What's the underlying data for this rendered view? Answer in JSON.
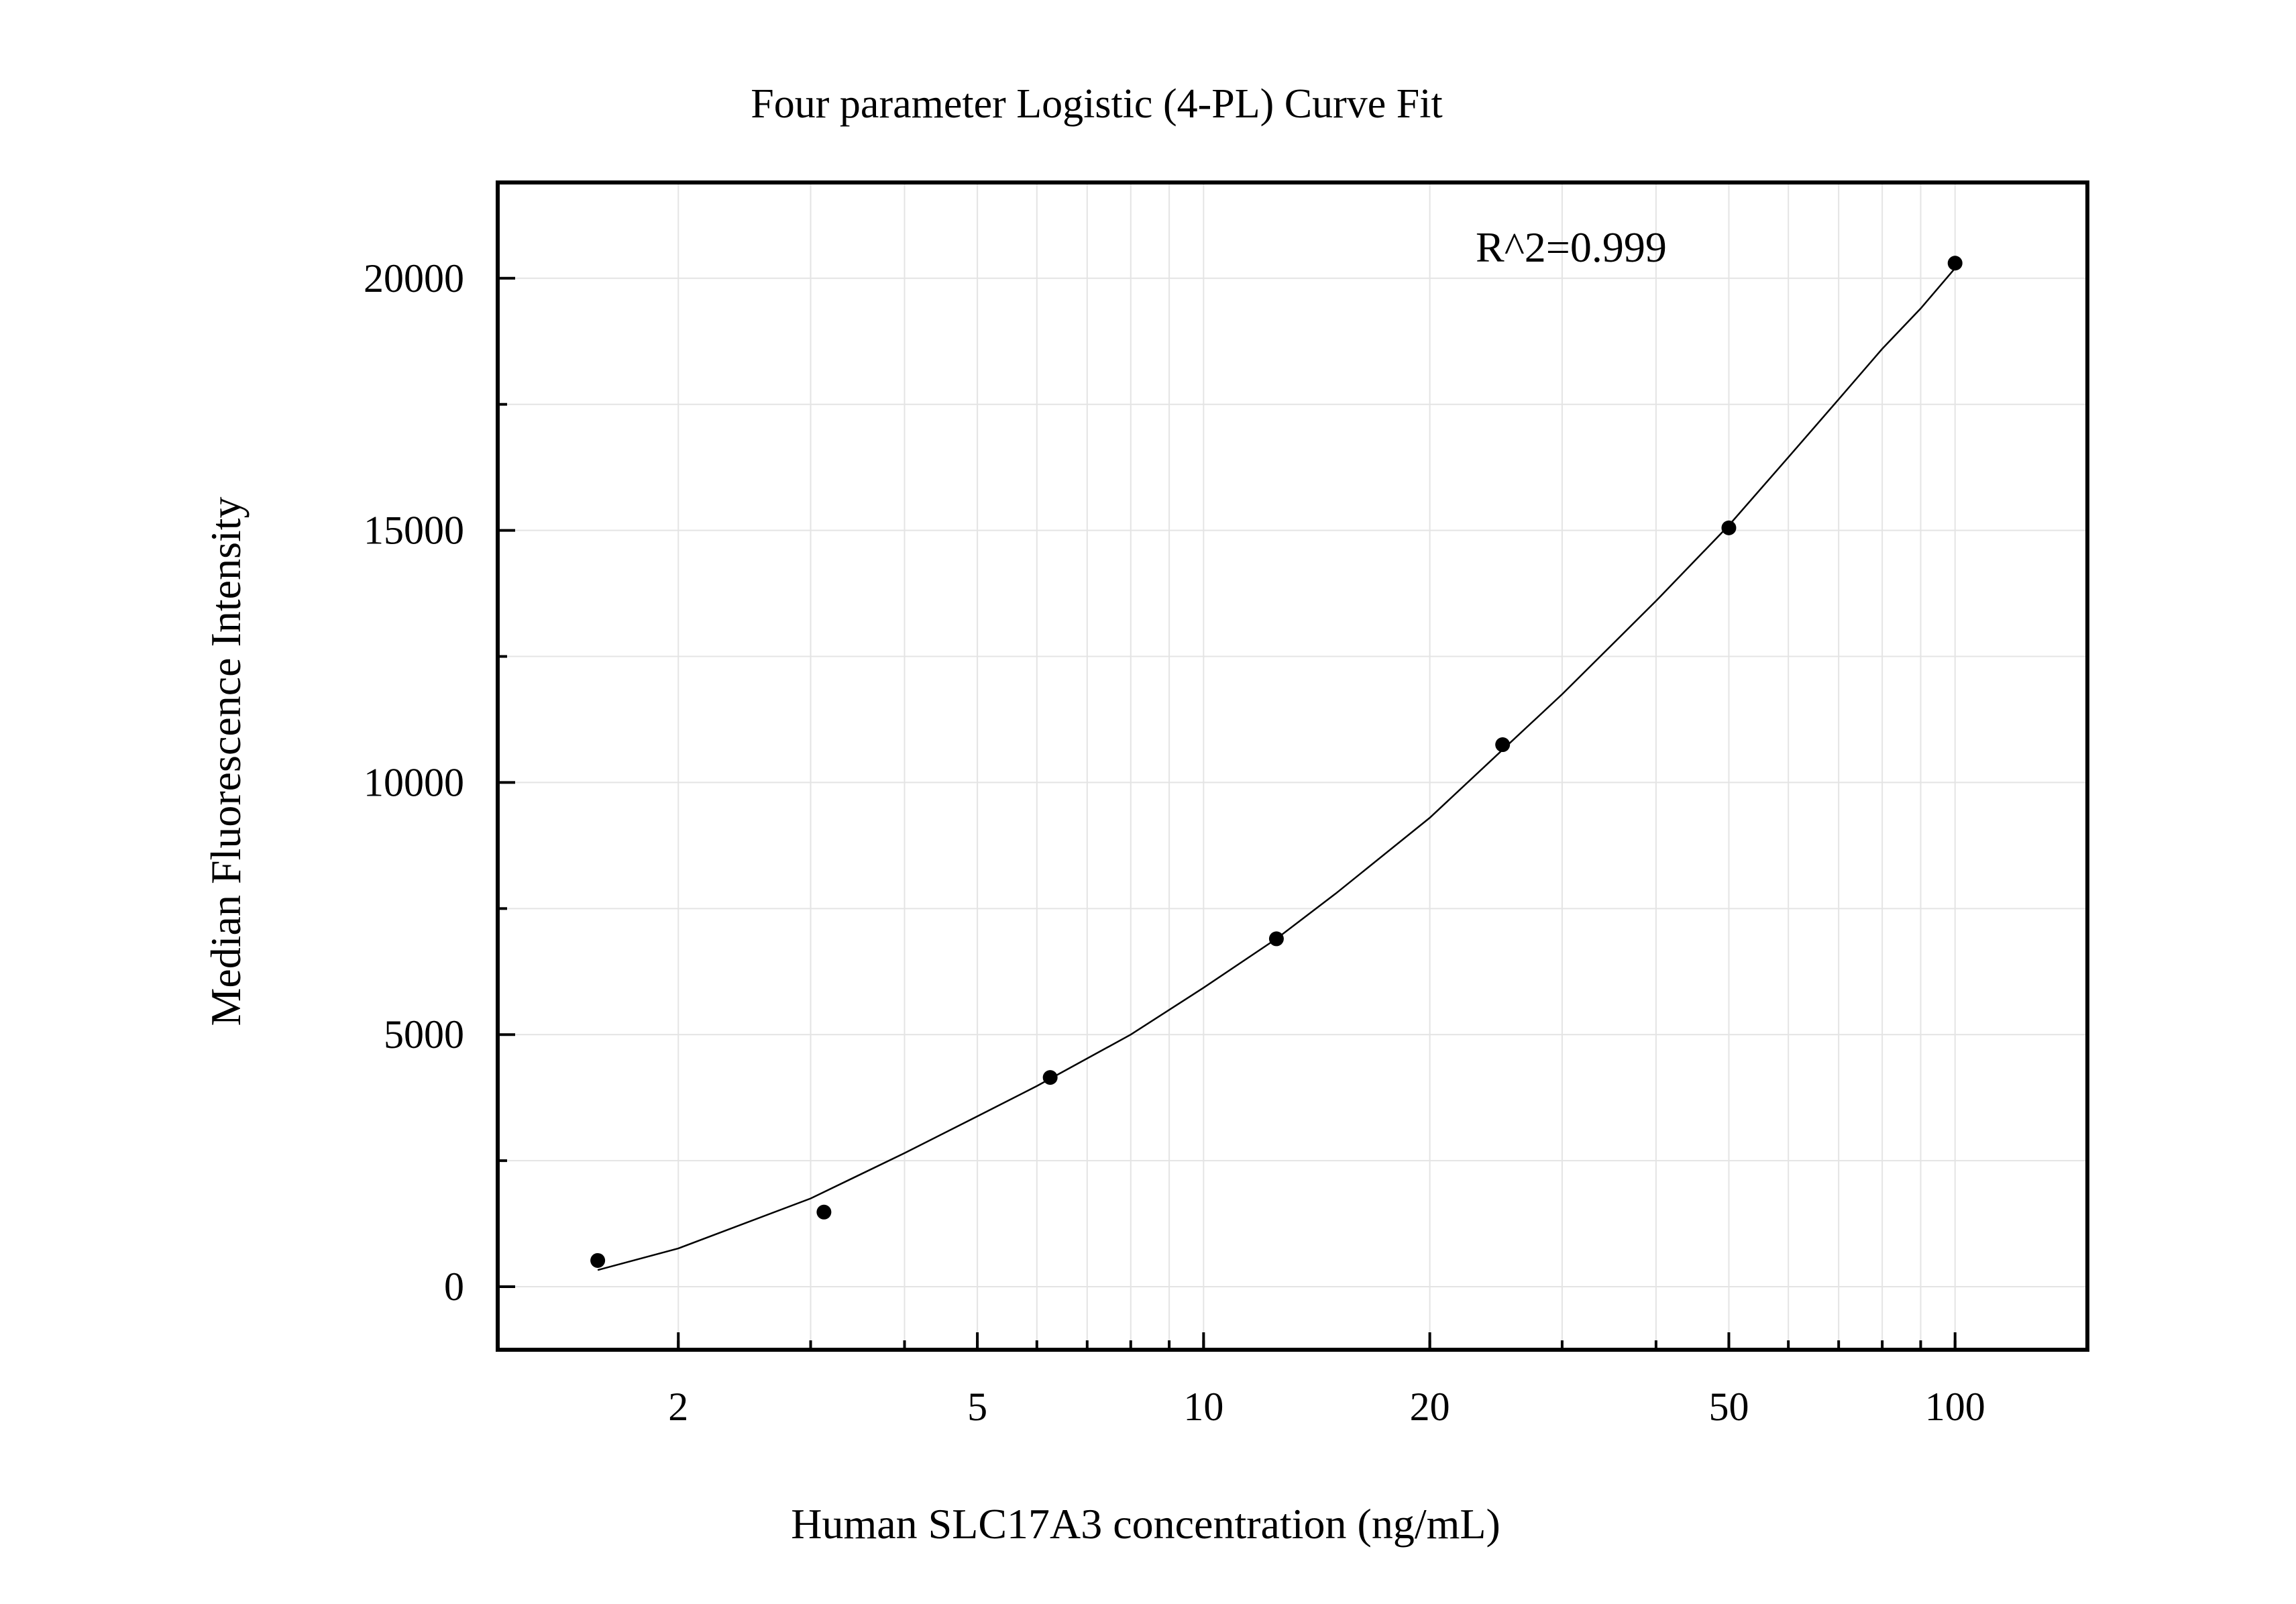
{
  "chart_data": {
    "type": "scatter",
    "title": "Four parameter Logistic (4-PL) Curve Fit",
    "xlabel": "Human SLC17A3 concentration (ng/mL)",
    "ylabel": "Median Fluorescence Intensity",
    "x_scale": "log",
    "xlim": [
      1.15,
      150
    ],
    "ylim": [
      -1250,
      21900
    ],
    "x_ticks": [
      2,
      5,
      10,
      20,
      50,
      100
    ],
    "x_tick_labels": [
      "2",
      "5",
      "10",
      "20",
      "50",
      "100"
    ],
    "y_ticks": [
      0,
      5000,
      10000,
      15000,
      20000
    ],
    "y_tick_labels": [
      "0",
      "5000",
      "10000",
      "15000",
      "20000"
    ],
    "grid": true,
    "annotation": "R^2=0.999",
    "series": [
      {
        "x": [
          1.5625,
          3.125,
          6.25,
          12.5,
          25,
          50,
          100
        ],
        "y": [
          520,
          1480,
          4150,
          6900,
          10750,
          15050,
          20300
        ]
      }
    ],
    "fit_curve": {
      "model": "4-PL",
      "x": [
        1.5625,
        2,
        3,
        4,
        5,
        6,
        8,
        10,
        12.5,
        15,
        20,
        25,
        30,
        40,
        50,
        60,
        70,
        80,
        90,
        100
      ],
      "y": [
        330,
        760,
        1750,
        2650,
        3380,
        3980,
        5000,
        5930,
        6900,
        7800,
        9300,
        10650,
        11750,
        13600,
        15100,
        16450,
        17600,
        18600,
        19400,
        20200
      ]
    }
  }
}
